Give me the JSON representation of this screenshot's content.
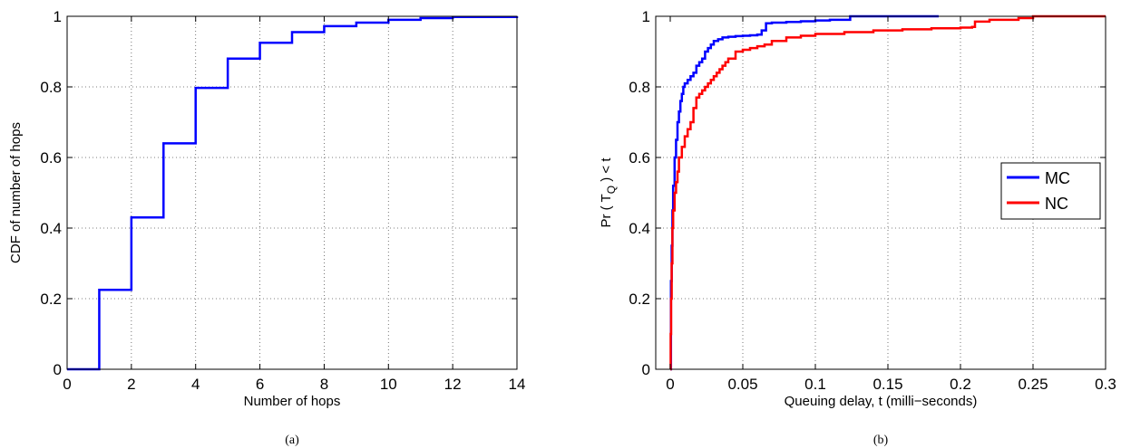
{
  "chart_data": [
    {
      "type": "line",
      "caption": "(a)",
      "xlabel": "Number of hops",
      "ylabel": "CDF of number of hops",
      "xlim": [
        0,
        14
      ],
      "ylim": [
        0,
        1
      ],
      "xticks": [
        0,
        2,
        4,
        6,
        8,
        10,
        12,
        14
      ],
      "yticks": [
        0,
        0.2,
        0.4,
        0.6,
        0.8,
        1
      ],
      "xtick_labels": [
        "0",
        "2",
        "4",
        "6",
        "8",
        "10",
        "12",
        "14"
      ],
      "ytick_labels": [
        "0",
        "0.2",
        "0.4",
        "0.6",
        "0.8",
        "1"
      ],
      "grid": true,
      "series": [
        {
          "color": "#0000ff",
          "step": true,
          "x": [
            0,
            1,
            2,
            3,
            4,
            5,
            6,
            7,
            8,
            9,
            10,
            11,
            12,
            14
          ],
          "y": [
            0,
            0.225,
            0.43,
            0.64,
            0.797,
            0.88,
            0.925,
            0.955,
            0.972,
            0.982,
            0.99,
            0.995,
            0.998,
            1.0
          ]
        }
      ]
    },
    {
      "type": "line",
      "caption": "(b)",
      "xlabel": "Queuing delay, t (milli−seconds)",
      "ylabel_main": "Pr ( T",
      "ylabel_sub": "Q",
      "ylabel_tail": " ) < t",
      "xlim": [
        -0.01,
        0.3
      ],
      "ylim": [
        0,
        1
      ],
      "xticks": [
        0,
        0.05,
        0.1,
        0.15,
        0.2,
        0.25,
        0.3
      ],
      "yticks": [
        0,
        0.2,
        0.4,
        0.6,
        0.8,
        1
      ],
      "xtick_labels": [
        "0",
        "0.05",
        "0.1",
        "0.15",
        "0.2",
        "0.25",
        "0.3"
      ],
      "ytick_labels": [
        "0",
        "0.2",
        "0.4",
        "0.6",
        "0.8",
        "1"
      ],
      "grid": true,
      "legend_position": "center-right",
      "series": [
        {
          "name": "MC",
          "color": "#0000ff",
          "step": true,
          "x": [
            0,
            0.0005,
            0.001,
            0.0015,
            0.002,
            0.003,
            0.004,
            0.005,
            0.006,
            0.007,
            0.008,
            0.009,
            0.01,
            0.012,
            0.014,
            0.016,
            0.018,
            0.02,
            0.022,
            0.024,
            0.026,
            0.028,
            0.03,
            0.033,
            0.036,
            0.04,
            0.045,
            0.05,
            0.055,
            0.06,
            0.063,
            0.066,
            0.07,
            0.08,
            0.09,
            0.1,
            0.11,
            0.122,
            0.124,
            0.15,
            0.185
          ],
          "y": [
            0,
            0.25,
            0.35,
            0.45,
            0.52,
            0.6,
            0.65,
            0.7,
            0.73,
            0.76,
            0.78,
            0.8,
            0.81,
            0.82,
            0.83,
            0.84,
            0.86,
            0.87,
            0.88,
            0.9,
            0.91,
            0.92,
            0.93,
            0.935,
            0.94,
            0.942,
            0.944,
            0.945,
            0.946,
            0.948,
            0.96,
            0.98,
            0.982,
            0.984,
            0.986,
            0.988,
            0.99,
            0.99,
            1.0,
            1.0,
            1.0
          ]
        },
        {
          "name": "NC",
          "color": "#ff0000",
          "step": true,
          "x": [
            0,
            0.0003,
            0.0006,
            0.001,
            0.0015,
            0.002,
            0.003,
            0.004,
            0.005,
            0.006,
            0.008,
            0.01,
            0.012,
            0.014,
            0.016,
            0.018,
            0.02,
            0.022,
            0.024,
            0.026,
            0.028,
            0.03,
            0.032,
            0.034,
            0.036,
            0.038,
            0.04,
            0.045,
            0.05,
            0.055,
            0.06,
            0.065,
            0.07,
            0.08,
            0.09,
            0.1,
            0.12,
            0.14,
            0.16,
            0.18,
            0.2,
            0.208,
            0.21,
            0.22,
            0.24,
            0.25,
            0.3
          ],
          "y": [
            0,
            0.1,
            0.2,
            0.3,
            0.4,
            0.45,
            0.5,
            0.53,
            0.56,
            0.6,
            0.63,
            0.66,
            0.68,
            0.7,
            0.74,
            0.77,
            0.78,
            0.79,
            0.8,
            0.81,
            0.82,
            0.83,
            0.84,
            0.85,
            0.86,
            0.87,
            0.88,
            0.9,
            0.905,
            0.91,
            0.915,
            0.92,
            0.93,
            0.94,
            0.945,
            0.95,
            0.955,
            0.96,
            0.963,
            0.966,
            0.968,
            0.97,
            0.985,
            0.99,
            0.995,
            1.0,
            1.0
          ]
        }
      ]
    }
  ]
}
